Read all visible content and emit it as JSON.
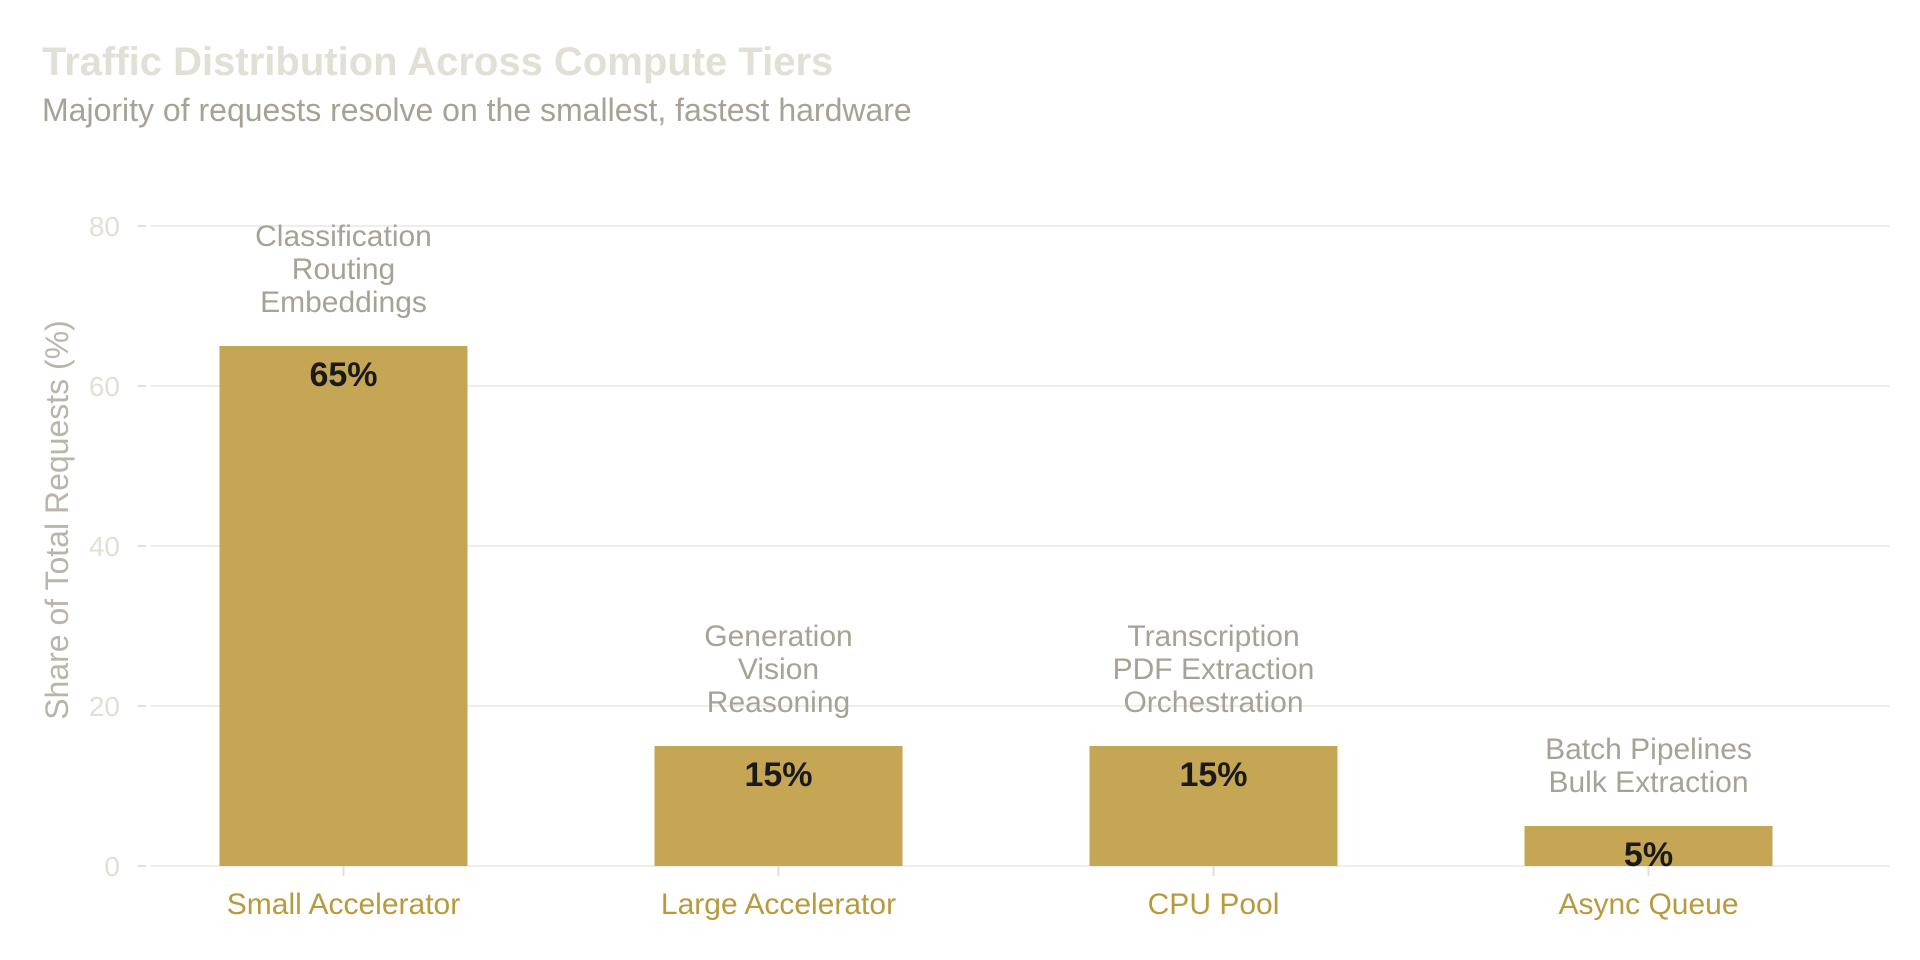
{
  "chart_data": {
    "type": "bar",
    "title": "Traffic Distribution Across Compute Tiers",
    "subtitle": "Majority of requests resolve on the smallest, fastest hardware",
    "ylabel": "Share of Total Requests (%)",
    "xlabel": "",
    "ylim": [
      0,
      80
    ],
    "yticks": [
      "0",
      "20",
      "40",
      "60",
      "80"
    ],
    "grid": true,
    "categories": [
      "Small Accelerator",
      "Large Accelerator",
      "CPU Pool",
      "Async Queue"
    ],
    "values": [
      65,
      15,
      15,
      5
    ],
    "value_labels": [
      "65%",
      "15%",
      "15%",
      "5%"
    ],
    "annotations": [
      [
        "Classification",
        "Routing",
        "Embeddings"
      ],
      [
        "Generation",
        "Vision",
        "Reasoning"
      ],
      [
        "Transcription",
        "PDF Extraction",
        "Orchestration"
      ],
      [
        "Batch Pipelines",
        "Bulk Extraction"
      ]
    ],
    "colors": {
      "bar": "#c4a654",
      "category_label": "#b89a3e",
      "annotation": "#a7a297",
      "axis": "#e2dfd6",
      "grid": "#ededea",
      "value_label": "#1a1a1a"
    }
  }
}
